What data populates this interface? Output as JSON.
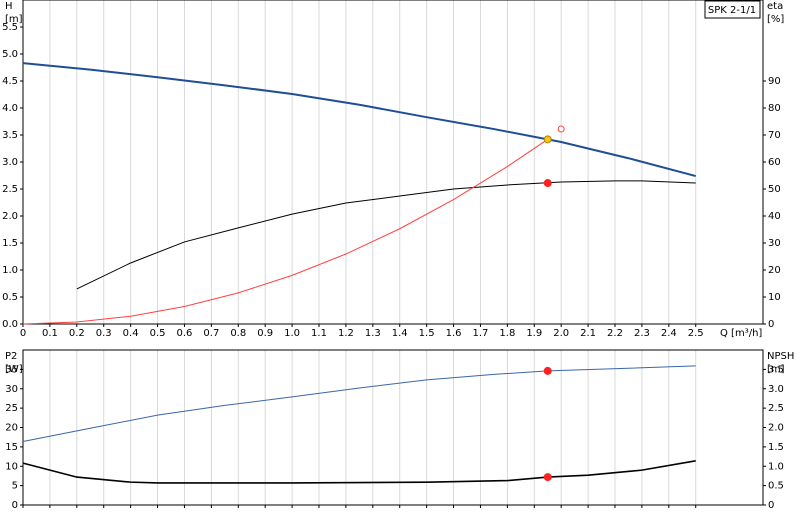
{
  "chart_data": [
    {
      "type": "line",
      "tag": "SPK 2-1/1",
      "ylabel": "H",
      "yunit": "[m]",
      "y2label": "eta",
      "y2unit": "[%]",
      "xlabel": "Q [m³/h]",
      "xlim": [
        0,
        2.75
      ],
      "ylim": [
        0,
        6
      ],
      "y2lim": [
        0,
        120
      ],
      "grid": true,
      "xtick_labels": true,
      "xticks": [
        0,
        0.1,
        0.2,
        0.3,
        0.4,
        0.5,
        0.6,
        0.7,
        0.8,
        0.9,
        {
          "value": 1,
          "label": "1.0"
        },
        1.1,
        1.2,
        1.3,
        1.4,
        1.5,
        1.6,
        1.7,
        1.8,
        1.9,
        {
          "value": 2,
          "label": "2.0"
        },
        2.1,
        2.2,
        2.3,
        2.4,
        2.5
      ],
      "yticks": [
        {
          "value": 0,
          "label": "0.0"
        },
        0.5,
        {
          "value": 1,
          "label": "1.0"
        },
        1.5,
        {
          "value": 2,
          "label": "2.0"
        },
        2.5,
        {
          "value": 3,
          "label": "3.0"
        },
        3.5,
        {
          "value": 4,
          "label": "4.0"
        },
        4.5,
        {
          "value": 5,
          "label": "5.0"
        },
        5.5
      ],
      "y2ticks": [
        0,
        10,
        20,
        30,
        40,
        50,
        60,
        70,
        80,
        90
      ],
      "series": [
        {
          "color": "#1f4e96",
          "width": 2,
          "axis": "y",
          "x": [
            0,
            0.25,
            0.5,
            0.75,
            1.0,
            1.25,
            1.5,
            1.75,
            2.0,
            2.25,
            2.5
          ],
          "values": [
            4.83,
            4.71,
            4.57,
            4.42,
            4.26,
            4.06,
            3.83,
            3.61,
            3.37,
            3.07,
            2.74
          ]
        },
        {
          "color": "#000000",
          "width": 1,
          "axis": "y2",
          "x": [
            0.2,
            0.4,
            0.6,
            0.8,
            1.0,
            1.2,
            1.4,
            1.6,
            1.8,
            2.0,
            2.2,
            2.3,
            2.5
          ],
          "values": [
            13,
            22.6,
            30.4,
            35.6,
            40.7,
            44.8,
            47.4,
            50,
            51.5,
            52.6,
            53,
            53,
            52.2
          ]
        },
        {
          "color": "#ff4040",
          "width": 1,
          "axis": "y",
          "x": [
            0,
            0.2,
            0.4,
            0.6,
            0.8,
            1.0,
            1.2,
            1.4,
            1.6,
            1.8,
            1.95
          ],
          "values": [
            0,
            0.036,
            0.144,
            0.324,
            0.576,
            0.9,
            1.296,
            1.764,
            2.304,
            2.916,
            3.42
          ]
        }
      ],
      "points": [
        {
          "x": 1.95,
          "y": 3.42,
          "axis": "y",
          "color": "#f5c518",
          "filled": true
        },
        {
          "x": 1.95,
          "y": 52.2,
          "axis": "y2",
          "color": "#ff2020",
          "filled": true
        },
        {
          "x": 2.0,
          "y": 3.61,
          "axis": "y",
          "color": "#ff4040",
          "filled": false
        }
      ]
    },
    {
      "type": "line",
      "ylabel": "P2",
      "yunit": "[W]",
      "y2label": "NPSH",
      "y2unit": "[m]",
      "xlim": [
        0,
        2.75
      ],
      "ylim": [
        0,
        40
      ],
      "y2lim": [
        0,
        4
      ],
      "grid": true,
      "xtick_labels": false,
      "xticks": [
        0,
        0.1,
        0.2,
        0.3,
        0.4,
        0.5,
        0.6,
        0.7,
        0.8,
        0.9,
        1,
        1.1,
        1.2,
        1.3,
        1.4,
        1.5,
        1.6,
        1.7,
        1.8,
        1.9,
        2,
        2.1,
        2.2,
        2.3,
        2.4,
        2.5
      ],
      "yticks": [
        0,
        5,
        10,
        15,
        20,
        25,
        30,
        35
      ],
      "y2ticks": [
        0,
        0.5,
        {
          "value": 1,
          "label": "1.0"
        },
        1.5,
        {
          "value": 2,
          "label": "2.0"
        },
        2.5,
        {
          "value": 3,
          "label": "3.0"
        },
        3.5
      ],
      "series": [
        {
          "color": "#3a66a8",
          "width": 1,
          "axis": "y",
          "x": [
            0,
            0.25,
            0.5,
            0.75,
            1.0,
            1.25,
            1.5,
            1.75,
            1.95,
            2.25,
            2.5
          ],
          "values": [
            16.4,
            19.8,
            23.2,
            25.7,
            27.9,
            30.2,
            32.3,
            33.7,
            34.6,
            35.3,
            35.9
          ]
        },
        {
          "color": "#000000",
          "width": 1.6,
          "axis": "y2",
          "x": [
            0,
            0.2,
            0.4,
            0.5,
            1.0,
            1.5,
            1.8,
            1.95,
            2.1,
            2.3,
            2.5
          ],
          "values": [
            1.08,
            0.72,
            0.59,
            0.57,
            0.57,
            0.59,
            0.63,
            0.72,
            0.77,
            0.9,
            1.14
          ]
        }
      ],
      "points": [
        {
          "x": 1.95,
          "y": 34.6,
          "axis": "y",
          "color": "#ff2020",
          "filled": true
        },
        {
          "x": 1.95,
          "y": 0.72,
          "axis": "y2",
          "color": "#ff2020",
          "filled": true
        }
      ]
    }
  ]
}
